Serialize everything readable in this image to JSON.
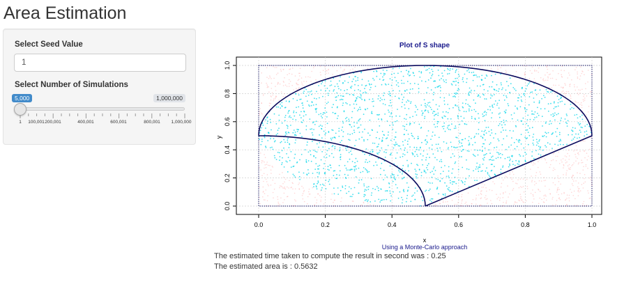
{
  "app": {
    "title": "Area Estimation"
  },
  "sidebar": {
    "seed": {
      "label": "Select Seed Value",
      "value": "1"
    },
    "simulations": {
      "label": "Select Number of Simulations",
      "current": "5,000",
      "max_label": "1,000,000",
      "tick_labels": [
        "1",
        "100,001",
        "200,001",
        "400,001",
        "600,001",
        "800,001",
        "1,000,000"
      ],
      "fraction": 0.005
    }
  },
  "plot": {
    "title": "Plot of S shape",
    "subtitle": "Using a Monte-Carlo approach",
    "xlabel": "x",
    "ylabel": "y",
    "x_ticks": [
      "0.0",
      "0.2",
      "0.4",
      "0.6",
      "0.8",
      "1.0"
    ],
    "y_ticks": [
      "0.0",
      "0.2",
      "0.4",
      "0.6",
      "0.8",
      "1.0"
    ],
    "xlim": [
      0,
      1
    ],
    "ylim": [
      0,
      1
    ],
    "grid": true,
    "colors": {
      "inside": "#00d4e8",
      "outside": "#ffb3b3",
      "boundary": "#0b0b5e",
      "title": "#1a1a8c"
    }
  },
  "output": {
    "time_text": "The estimated time taken to compute the result in second was : 0.25",
    "area_text": "The estimated area is : 0.5632"
  }
}
